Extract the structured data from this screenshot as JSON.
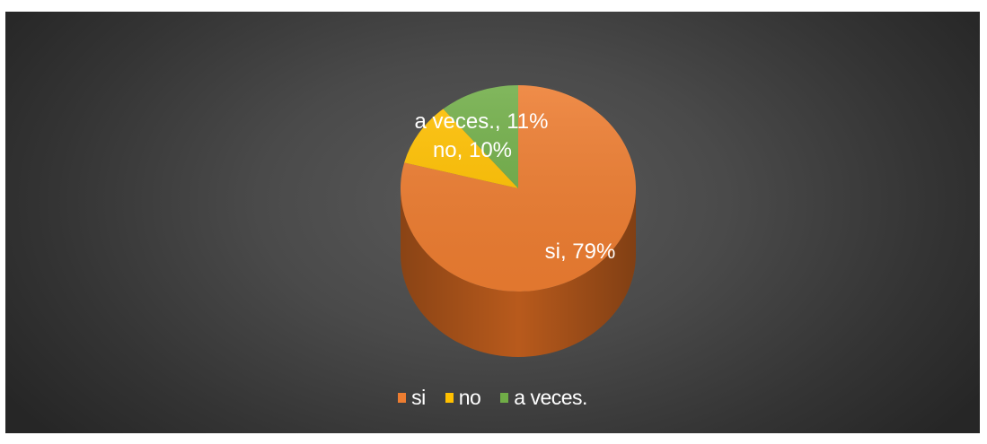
{
  "chart_data": {
    "type": "pie",
    "style": "3d",
    "title": "",
    "categories": [
      "si",
      "no",
      "a veces."
    ],
    "values": [
      79,
      10,
      11
    ],
    "unit": "%",
    "data_labels": [
      "si, 79%",
      "no, 10%",
      "a veces., 11%"
    ],
    "colors": [
      "#ED7D31",
      "#FFC000",
      "#70AD47"
    ],
    "side_colors": [
      "#B85A1C",
      "#C79200",
      "#4E7F30"
    ],
    "legend_position": "bottom"
  },
  "legend": {
    "items": [
      {
        "label": "si",
        "color": "#ED7D31"
      },
      {
        "label": "no",
        "color": "#FFC000"
      },
      {
        "label": "a veces.",
        "color": "#70AD47"
      }
    ]
  },
  "colors": {
    "background_center": "#5a5a5a",
    "background_edge": "#262626"
  }
}
